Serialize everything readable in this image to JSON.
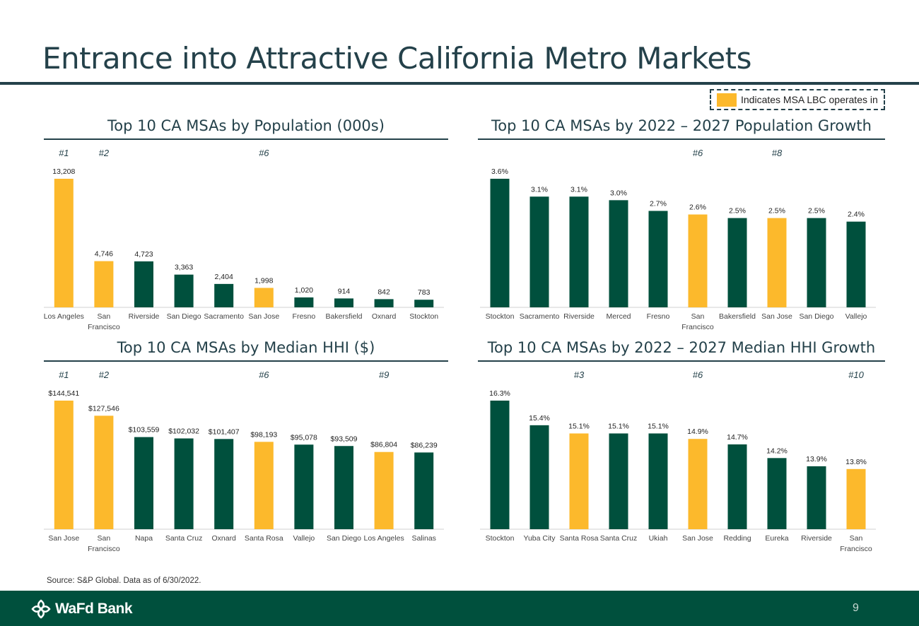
{
  "page": {
    "title": "Entrance into Attractive California Metro Markets",
    "page_number": "9"
  },
  "legend": {
    "label": "Indicates MSA LBC operates in",
    "highlight_color": "#fcb92c"
  },
  "colors": {
    "lbc": "#fcb92c",
    "other": "#00503d",
    "rank": "#24414a",
    "footer": "#00503d"
  },
  "source": "Source: S&P Global. Data as of 6/30/2022.",
  "footer": {
    "brand_text": "WaFd Bank"
  },
  "chart_data": [
    {
      "id": "population",
      "type": "bar",
      "title": "Top 10 CA MSAs by Population (000s)",
      "categories": [
        "Los Angeles",
        "San Francisco",
        "Riverside",
        "San Diego",
        "Sacramento",
        "San Jose",
        "Fresno",
        "Bakersfield",
        "Oxnard",
        "Stockton"
      ],
      "values": [
        13208,
        4746,
        4723,
        3363,
        2404,
        1998,
        1020,
        914,
        842,
        783
      ],
      "labels": [
        "13,208",
        "4,746",
        "4,723",
        "3,363",
        "2,404",
        "1,998",
        "1,020",
        "914",
        "842",
        "783"
      ],
      "highlight": [
        true,
        true,
        false,
        false,
        false,
        true,
        false,
        false,
        false,
        false
      ],
      "ranks": [
        "#1",
        "#2",
        "",
        "",
        "",
        "#6",
        "",
        "",
        "",
        ""
      ],
      "ylim": [
        0,
        13208
      ]
    },
    {
      "id": "pop_growth",
      "type": "bar",
      "title": "Top 10 CA MSAs by 2022 – 2027 Population Growth",
      "categories": [
        "Stockton",
        "Sacramento",
        "Riverside",
        "Merced",
        "Fresno",
        "San Francisco",
        "Bakersfield",
        "San Jose",
        "San Diego",
        "Vallejo"
      ],
      "values": [
        3.6,
        3.1,
        3.1,
        3.0,
        2.7,
        2.6,
        2.5,
        2.5,
        2.5,
        2.4
      ],
      "labels": [
        "3.6%",
        "3.1%",
        "3.1%",
        "3.0%",
        "2.7%",
        "2.6%",
        "2.5%",
        "2.5%",
        "2.5%",
        "2.4%"
      ],
      "highlight": [
        false,
        false,
        false,
        false,
        false,
        true,
        false,
        true,
        false,
        false
      ],
      "ranks": [
        "",
        "",
        "",
        "",
        "",
        "#6",
        "",
        "#8",
        "",
        ""
      ],
      "ylim": [
        0,
        3.6
      ]
    },
    {
      "id": "hhi",
      "type": "bar",
      "title": "Top 10 CA MSAs by Median HHI ($)",
      "categories": [
        "San Jose",
        "San Francisco",
        "Napa",
        "Santa Cruz",
        "Oxnard",
        "Santa Rosa",
        "Vallejo",
        "San Diego",
        "Los Angeles",
        "Salinas"
      ],
      "values": [
        144541,
        127546,
        103559,
        102032,
        101407,
        98193,
        95078,
        93509,
        86804,
        86239
      ],
      "labels": [
        "$144,541",
        "$127,546",
        "$103,559",
        "$102,032",
        "$101,407",
        "$98,193",
        "$95,078",
        "$93,509",
        "$86,804",
        "$86,239"
      ],
      "highlight": [
        true,
        true,
        false,
        false,
        false,
        true,
        false,
        false,
        true,
        false
      ],
      "ranks": [
        "#1",
        "#2",
        "",
        "",
        "",
        "#6",
        "",
        "",
        "#9",
        ""
      ],
      "ylim": [
        0,
        144541
      ]
    },
    {
      "id": "hhi_growth",
      "type": "bar",
      "title": "Top 10 CA MSAs by 2022 – 2027 Median HHI Growth",
      "categories": [
        "Stockton",
        "Yuba City",
        "Santa Rosa",
        "Santa Cruz",
        "Ukiah",
        "San Jose",
        "Redding",
        "Eureka",
        "Riverside",
        "San Francisco"
      ],
      "values": [
        16.3,
        15.4,
        15.1,
        15.1,
        15.1,
        14.9,
        14.7,
        14.2,
        13.9,
        13.8
      ],
      "labels": [
        "16.3%",
        "15.4%",
        "15.1%",
        "15.1%",
        "15.1%",
        "14.9%",
        "14.7%",
        "14.2%",
        "13.9%",
        "13.8%"
      ],
      "highlight": [
        false,
        false,
        true,
        false,
        false,
        true,
        false,
        false,
        false,
        true
      ],
      "ranks": [
        "",
        "",
        "#3",
        "",
        "",
        "#6",
        "",
        "",
        "",
        "#10"
      ],
      "ylim": [
        11.6,
        16.3
      ]
    }
  ]
}
